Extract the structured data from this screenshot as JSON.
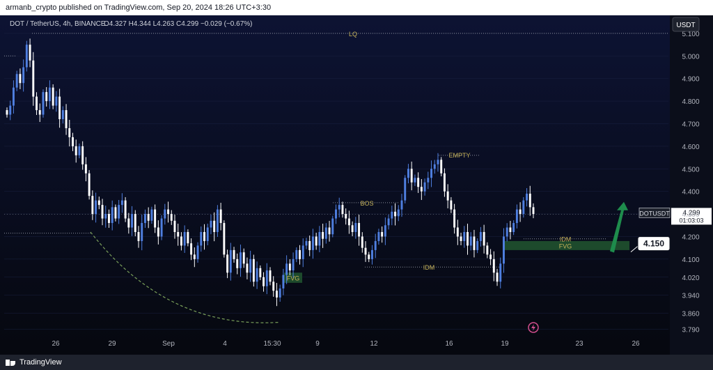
{
  "header": {
    "published_line": "armanb_crypto published on TradingView.com, Sep 20, 2024 18:26 UTC+3:30"
  },
  "footer": {
    "brand": "TradingView"
  },
  "legend": {
    "symbol": "DOT / TetherUS, 4h, BINANCE",
    "ohlc": "O4.327  H4.344  L4.263  C4.299  −0.029 (−0.67%)"
  },
  "currency_button": "USDT",
  "price_tag": {
    "symbol": "DOTUSDT",
    "price": "4.299",
    "countdown": "01:03:03"
  },
  "target_label": "4.150",
  "annotations": {
    "lq": "LQ",
    "empty": "EMPTY",
    "bos": "BOS",
    "idm_low": "IDM",
    "idm_right": "IDM",
    "fvg_left": "FVG",
    "fvg_right": "FVG"
  },
  "colors": {
    "background": "#0b0e1a",
    "candle_up": "#4f7fe0",
    "candle_down": "#ffffff",
    "annotation": "#c8b45a",
    "fvg_zone": "#1d4a2c",
    "arrow": "#1e8c4c",
    "dashed_curve": "#7aa05a"
  },
  "chart_data": {
    "type": "candlestick",
    "title": "",
    "xlabel": "",
    "ylabel": "",
    "ylim": [
      3.76,
      5.18
    ],
    "x_ticks": [
      "26",
      "29",
      "Sep",
      "4",
      "15:30",
      "9",
      "12",
      "16",
      "19",
      "23",
      "26"
    ],
    "y_ticks": [
      5.1,
      5.0,
      4.9,
      4.8,
      4.7,
      4.6,
      4.5,
      4.4,
      4.3,
      4.2,
      4.1,
      4.02,
      3.94,
      3.86,
      3.79
    ],
    "y_tick_labels": [
      "5.100",
      "5.000",
      "4.900",
      "4.800",
      "4.700",
      "4.600",
      "4.500",
      "4.400",
      "4.300",
      "4.200",
      "4.100",
      "4.020",
      "3.940",
      "3.860",
      "3.790"
    ],
    "levels": {
      "lq": 5.1,
      "empty": 4.56,
      "bos": 4.35,
      "idm_low": 4.065,
      "idm_right": 4.19,
      "last_price": 4.299,
      "target": 4.15,
      "fvg_right": [
        4.14,
        4.18
      ],
      "fvg_left": [
        3.995,
        4.04
      ]
    },
    "close_path": [
      4.74,
      4.78,
      4.86,
      4.92,
      4.88,
      4.95,
      5.05,
      4.98,
      4.82,
      4.76,
      4.74,
      4.84,
      4.8,
      4.86,
      4.78,
      4.82,
      4.72,
      4.76,
      4.68,
      4.64,
      4.6,
      4.56,
      4.6,
      4.52,
      4.48,
      4.38,
      4.3,
      4.36,
      4.34,
      4.28,
      4.3,
      4.26,
      4.33,
      4.28,
      4.34,
      4.36,
      4.28,
      4.24,
      4.3,
      4.22,
      4.18,
      4.26,
      4.3,
      4.27,
      4.32,
      4.24,
      4.2,
      4.28,
      4.32,
      4.3,
      4.27,
      4.22,
      4.2,
      4.16,
      4.22,
      4.17,
      4.12,
      4.1,
      4.16,
      4.22,
      4.18,
      4.24,
      4.27,
      4.22,
      4.32,
      4.26,
      4.12,
      4.04,
      4.14,
      4.1,
      4.06,
      4.13,
      4.08,
      4.04,
      4.1,
      4.0,
      4.06,
      4.02,
      3.98,
      4.05,
      4.0,
      3.96,
      3.93,
      3.97,
      4.03,
      4.08,
      4.05,
      4.1,
      4.14,
      4.1,
      4.16,
      4.18,
      4.14,
      4.2,
      4.16,
      4.22,
      4.19,
      4.24,
      4.21,
      4.28,
      4.32,
      4.34,
      4.3,
      4.28,
      4.25,
      4.22,
      4.26,
      4.2,
      4.15,
      4.12,
      4.1,
      4.14,
      4.18,
      4.22,
      4.2,
      4.25,
      4.28,
      4.31,
      4.29,
      4.32,
      4.36,
      4.46,
      4.5,
      4.44,
      4.46,
      4.42,
      4.4,
      4.44,
      4.46,
      4.5,
      4.52,
      4.54,
      4.48,
      4.4,
      4.36,
      4.32,
      4.24,
      4.2,
      4.18,
      4.22,
      4.16,
      4.2,
      4.14,
      4.18,
      4.22,
      4.16,
      4.12,
      4.1,
      4.04,
      4.0,
      4.08,
      4.2,
      4.24,
      4.22,
      4.26,
      4.32,
      4.3,
      4.36,
      4.39,
      4.33,
      4.3
    ]
  }
}
